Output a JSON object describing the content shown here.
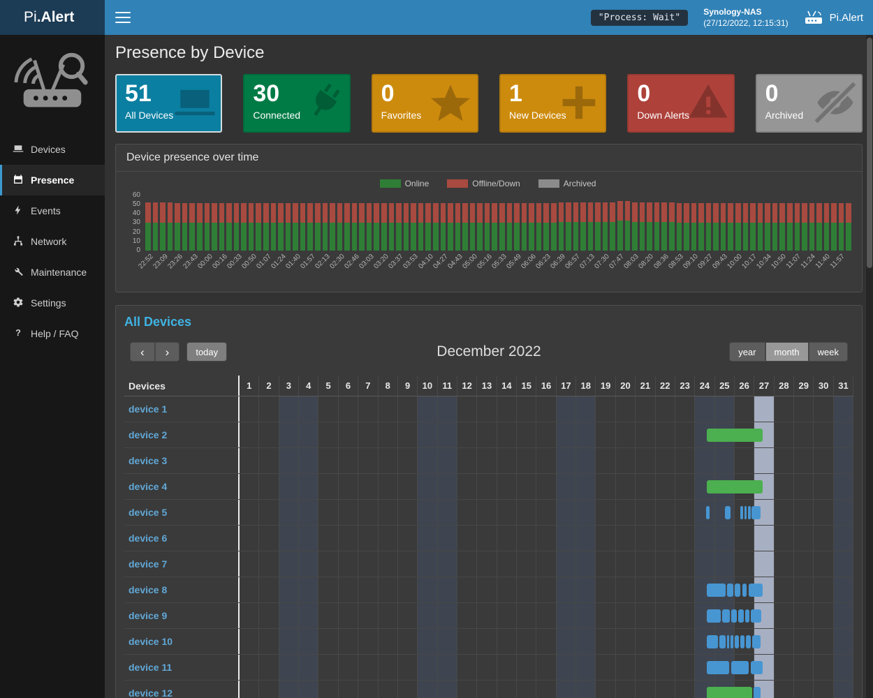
{
  "header": {
    "brand_light": "Pi",
    "brand_bold": ".Alert",
    "process_badge": "\"Process: Wait\"",
    "host_name": "Synology-NAS",
    "host_time": "(27/12/2022, 12:15:31)",
    "right_brand": "Pi.Alert"
  },
  "sidebar": {
    "items": [
      {
        "label": "Devices",
        "icon": "laptop-icon",
        "active": false
      },
      {
        "label": "Presence",
        "icon": "calendar-icon",
        "active": true
      },
      {
        "label": "Events",
        "icon": "bolt-icon",
        "active": false
      },
      {
        "label": "Network",
        "icon": "network-icon",
        "active": false
      },
      {
        "label": "Maintenance",
        "icon": "wrench-icon",
        "active": false
      },
      {
        "label": "Settings",
        "icon": "gear-icon",
        "active": false
      },
      {
        "label": "Help / FAQ",
        "icon": "question-icon",
        "active": false
      }
    ]
  },
  "page": {
    "title": "Presence by Device"
  },
  "stat_cards": [
    {
      "value": "51",
      "label": "All Devices",
      "color": "#0b7fa1",
      "icon": "laptop-icon",
      "selected": true
    },
    {
      "value": "30",
      "label": "Connected",
      "color": "#007b46",
      "icon": "plug-icon",
      "selected": false
    },
    {
      "value": "0",
      "label": "Favorites",
      "color": "#cd8b0e",
      "icon": "star-icon",
      "selected": false
    },
    {
      "value": "1",
      "label": "New Devices",
      "color": "#cd8b0e",
      "icon": "plus-icon",
      "selected": false
    },
    {
      "value": "0",
      "label": "Down Alerts",
      "color": "#ae423b",
      "icon": "warning-icon",
      "selected": false
    },
    {
      "value": "0",
      "label": "Archived",
      "color": "#969696",
      "icon": "eye-slash-icon",
      "selected": false
    }
  ],
  "presence_chart": {
    "panel_title": "Device presence over time",
    "legend": [
      {
        "label": "Online",
        "color": "#2f7e36"
      },
      {
        "label": "Offline/Down",
        "color": "#a84a40"
      },
      {
        "label": "Archived",
        "color": "#8b8b8b"
      }
    ],
    "chart_data": {
      "type": "bar",
      "stacked": true,
      "title": "Device presence over time",
      "xlabel": "",
      "ylabel": "",
      "ylim": [
        0,
        60
      ],
      "yticks": [
        60,
        50,
        40,
        30,
        20,
        10,
        0
      ],
      "bars_per_label": 2,
      "legend_position": "top",
      "x": [
        "22:52",
        "23:09",
        "23:26",
        "23:43",
        "00:00",
        "00:16",
        "00:33",
        "00:50",
        "01:07",
        "01:24",
        "01:40",
        "01:57",
        "02:13",
        "02:30",
        "02:46",
        "03:03",
        "03:20",
        "03:37",
        "03:53",
        "04:10",
        "04:27",
        "04:43",
        "05:00",
        "05:16",
        "05:33",
        "05:49",
        "06:06",
        "06:23",
        "06:39",
        "06:57",
        "07:13",
        "07:30",
        "07:47",
        "08:03",
        "08:20",
        "08:36",
        "08:53",
        "09:10",
        "09:27",
        "09:43",
        "10:00",
        "10:17",
        "10:34",
        "10:50",
        "11:07",
        "11:24",
        "11:40",
        "11:57"
      ],
      "series": [
        {
          "name": "Online",
          "color": "#2f7e36",
          "values": [
            30,
            30,
            30,
            30,
            30,
            30,
            30,
            30,
            30,
            30,
            30,
            30,
            30,
            30,
            30,
            30,
            30,
            30,
            30,
            30,
            30,
            30,
            30,
            30,
            30,
            30,
            30,
            30,
            31,
            31,
            31,
            31,
            32,
            31,
            31,
            31,
            30,
            30,
            30,
            30,
            30,
            30,
            30,
            30,
            30,
            30,
            30,
            30
          ]
        },
        {
          "name": "Offline/Down",
          "color": "#a84a40",
          "values": [
            22,
            22,
            21,
            21,
            21,
            21,
            21,
            21,
            21,
            21,
            21,
            21,
            21,
            21,
            21,
            21,
            21,
            21,
            21,
            21,
            21,
            21,
            21,
            21,
            21,
            21,
            21,
            21,
            21,
            21,
            21,
            21,
            21,
            21,
            21,
            21,
            21,
            21,
            21,
            21,
            21,
            21,
            21,
            21,
            21,
            21,
            21,
            21
          ]
        },
        {
          "name": "Archived",
          "color": "#8b8b8b",
          "values": [
            0,
            0,
            0,
            0,
            0,
            0,
            0,
            0,
            0,
            0,
            0,
            0,
            0,
            0,
            0,
            0,
            0,
            0,
            0,
            0,
            0,
            0,
            0,
            0,
            0,
            0,
            0,
            0,
            0,
            0,
            0,
            0,
            0,
            0,
            0,
            0,
            0,
            0,
            0,
            0,
            0,
            0,
            0,
            0,
            0,
            0,
            0,
            0
          ]
        }
      ]
    }
  },
  "calendar": {
    "title": "All Devices",
    "today_label": "today",
    "chevron_left": "‹",
    "chevron_right": "›",
    "month_label": "December 2022",
    "views": [
      "year",
      "month",
      "week"
    ],
    "active_view": "month",
    "devices_header": "Devices",
    "days_in_month": 31,
    "weekend_days": [
      3,
      4,
      10,
      11,
      17,
      18,
      24,
      25,
      31
    ],
    "today_day": 27,
    "bar_colors": {
      "green": "#4caf50",
      "blue": "#4796d2"
    },
    "devices": [
      {
        "name": "device 1",
        "bars": []
      },
      {
        "name": "device 2",
        "bars": [
          {
            "start": 24.6,
            "end": 27.4,
            "color": "green"
          }
        ]
      },
      {
        "name": "device 3",
        "bars": []
      },
      {
        "name": "device 4",
        "bars": [
          {
            "start": 24.6,
            "end": 27.4,
            "color": "green"
          }
        ]
      },
      {
        "name": "device 5",
        "bars": [
          {
            "start": 24.55,
            "end": 24.75,
            "color": "blue"
          },
          {
            "start": 25.5,
            "end": 25.8,
            "color": "blue"
          },
          {
            "start": 26.3,
            "end": 26.42,
            "color": "blue"
          },
          {
            "start": 26.5,
            "end": 26.62,
            "color": "blue"
          },
          {
            "start": 26.68,
            "end": 26.8,
            "color": "blue"
          },
          {
            "start": 26.85,
            "end": 27.3,
            "color": "blue"
          }
        ]
      },
      {
        "name": "device 6",
        "bars": []
      },
      {
        "name": "device 7",
        "bars": []
      },
      {
        "name": "device 8",
        "bars": [
          {
            "start": 24.6,
            "end": 25.55,
            "color": "blue"
          },
          {
            "start": 25.62,
            "end": 25.95,
            "color": "blue"
          },
          {
            "start": 26.02,
            "end": 26.3,
            "color": "blue"
          },
          {
            "start": 26.38,
            "end": 26.62,
            "color": "blue"
          },
          {
            "start": 26.72,
            "end": 27.4,
            "color": "blue"
          }
        ]
      },
      {
        "name": "device 9",
        "bars": [
          {
            "start": 24.6,
            "end": 25.3,
            "color": "blue"
          },
          {
            "start": 25.38,
            "end": 25.75,
            "color": "blue"
          },
          {
            "start": 25.82,
            "end": 26.1,
            "color": "blue"
          },
          {
            "start": 26.18,
            "end": 26.45,
            "color": "blue"
          },
          {
            "start": 26.52,
            "end": 26.75,
            "color": "blue"
          },
          {
            "start": 26.82,
            "end": 27.35,
            "color": "blue"
          }
        ]
      },
      {
        "name": "device 10",
        "bars": [
          {
            "start": 24.6,
            "end": 25.15,
            "color": "blue"
          },
          {
            "start": 25.22,
            "end": 25.55,
            "color": "blue"
          },
          {
            "start": 25.62,
            "end": 25.74,
            "color": "blue"
          },
          {
            "start": 25.8,
            "end": 25.95,
            "color": "blue"
          },
          {
            "start": 26.02,
            "end": 26.2,
            "color": "blue"
          },
          {
            "start": 26.27,
            "end": 26.5,
            "color": "blue"
          },
          {
            "start": 26.57,
            "end": 26.8,
            "color": "blue"
          },
          {
            "start": 26.87,
            "end": 27.3,
            "color": "blue"
          }
        ]
      },
      {
        "name": "device 11",
        "bars": [
          {
            "start": 24.6,
            "end": 25.72,
            "color": "blue"
          },
          {
            "start": 25.82,
            "end": 26.7,
            "color": "blue"
          },
          {
            "start": 26.8,
            "end": 27.4,
            "color": "blue"
          }
        ]
      },
      {
        "name": "device 12",
        "bars": [
          {
            "start": 24.6,
            "end": 26.9,
            "color": "green"
          },
          {
            "start": 26.97,
            "end": 27.3,
            "color": "blue"
          }
        ]
      }
    ]
  }
}
